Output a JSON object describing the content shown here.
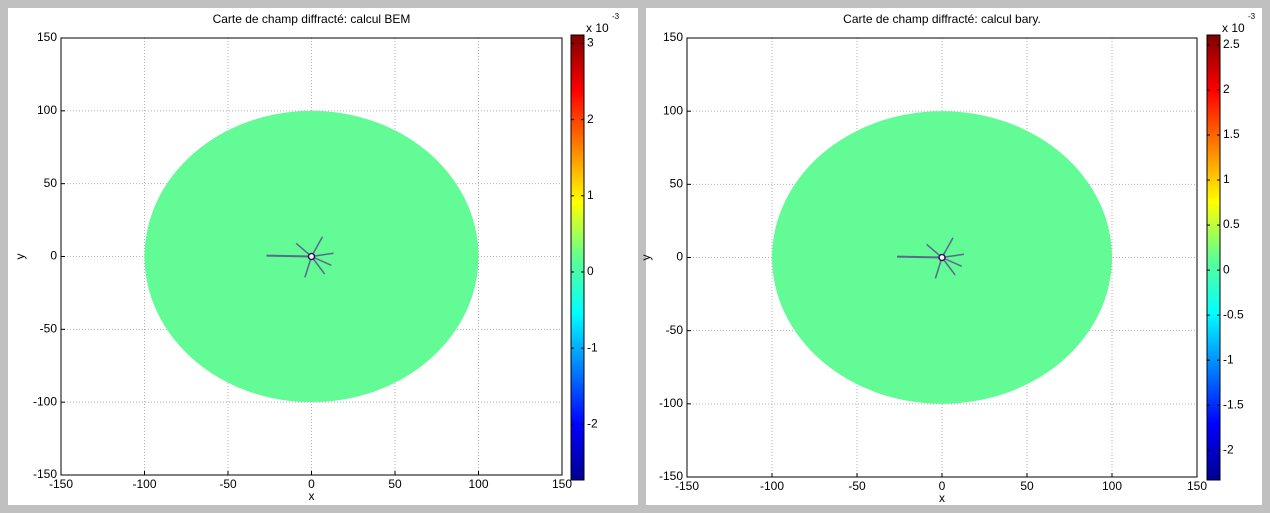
{
  "chart_data": [
    {
      "type": "field",
      "title": "Carte de champ diffracté: calcul BEM",
      "xlabel": "x",
      "ylabel": "y",
      "xlim": [
        -150,
        150
      ],
      "ylim": [
        -150,
        150
      ],
      "xticks": [
        -150,
        -100,
        -50,
        0,
        50,
        100,
        150
      ],
      "yticks": [
        -150,
        -100,
        -50,
        0,
        50,
        100,
        150
      ],
      "grid": true,
      "radius": 100,
      "colormap": "jet",
      "clim": [
        -2.73,
        3.11
      ],
      "cticks": [
        -2,
        -1,
        0,
        1,
        2,
        3
      ],
      "colorbar_scale": "x 10",
      "colorbar_exponent": "-3"
    },
    {
      "type": "field",
      "title": "Carte de champ diffracté: calcul bary.",
      "xlabel": "x",
      "ylabel": "y",
      "xlim": [
        -150,
        150
      ],
      "ylim": [
        -150,
        150
      ],
      "xticks": [
        -150,
        -100,
        -50,
        0,
        50,
        100,
        150
      ],
      "yticks": [
        -150,
        -100,
        -50,
        0,
        50,
        100,
        150
      ],
      "grid": true,
      "radius": 100,
      "colormap": "jet",
      "clim": [
        -2.33,
        2.61
      ],
      "cticks": [
        -2,
        -1.5,
        -1,
        -0.5,
        0,
        0.5,
        1,
        1.5,
        2,
        2.5
      ],
      "colorbar_scale": "x 10",
      "colorbar_exponent": "-3"
    }
  ]
}
